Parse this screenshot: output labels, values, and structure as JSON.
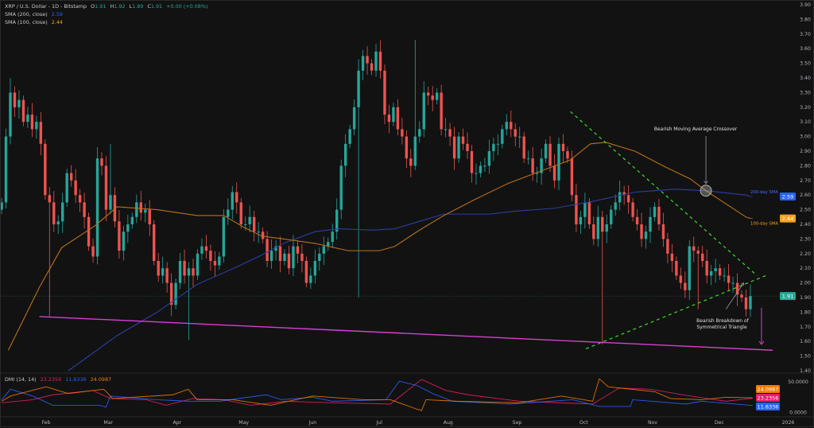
{
  "header": {
    "symbol": "XRP / U.S. Dollar - 1D - Bitstamp",
    "open_label": "O",
    "open": "1.91",
    "high_label": "H",
    "high": "1.92",
    "low_label": "L",
    "low": "1.89",
    "close_label": "C",
    "close": "1.91",
    "change": "+0.00 (+0.08%)"
  },
  "indicators": [
    {
      "label": "SMA (200, close)",
      "value": "2.59",
      "color": "#2962ff"
    },
    {
      "label": "SMA (100, close)",
      "value": "2.44",
      "color": "#f7a21b"
    }
  ],
  "dmi_legend": {
    "label": "DMI (14, 14)",
    "values": [
      "23.2356",
      "11.6336",
      "24.0987"
    ]
  },
  "colors": {
    "up": "#26a69a",
    "down": "#ef5350",
    "sma200": "#2b3fa0",
    "sma100": "#b8711c",
    "support": "#d63fd6",
    "triangle": "#3ddc2f",
    "price_badge": "#22ab94",
    "dmi_plus": "#e91e63",
    "dmi_minus": "#2962ff",
    "adx": "#f57c00"
  },
  "chart_data": [
    {
      "type": "candlestick",
      "title": "XRP / U.S. Dollar - 1D - Bitstamp",
      "date_range": [
        "2025-01-12",
        "2025-12-15"
      ],
      "close": [
        2.55,
        3.0,
        3.3,
        3.2,
        3.25,
        3.1,
        3.15,
        3.05,
        3.1,
        2.95,
        2.6,
        2.55,
        2.4,
        2.42,
        2.55,
        2.75,
        2.7,
        2.6,
        2.55,
        2.45,
        2.25,
        2.18,
        2.85,
        2.8,
        2.5,
        2.6,
        2.42,
        2.22,
        2.35,
        2.4,
        2.45,
        2.55,
        2.48,
        2.5,
        2.4,
        2.15,
        2.05,
        2.1,
        2.0,
        1.85,
        2.0,
        2.15,
        2.05,
        2.1,
        2.05,
        2.2,
        2.25,
        2.22,
        2.15,
        2.12,
        2.18,
        2.45,
        2.5,
        2.62,
        2.55,
        2.4,
        2.4,
        2.45,
        2.35,
        2.35,
        2.3,
        2.15,
        2.22,
        2.25,
        2.15,
        2.2,
        2.1,
        2.25,
        2.2,
        2.15,
        2.0,
        2.05,
        2.15,
        2.2,
        2.25,
        2.28,
        2.35,
        2.5,
        2.8,
        2.95,
        3.05,
        3.2,
        3.45,
        3.55,
        3.5,
        3.45,
        3.58,
        3.45,
        3.15,
        3.1,
        3.2,
        3.05,
        3.0,
        2.85,
        2.8,
        3.0,
        3.05,
        3.3,
        3.28,
        3.25,
        3.3,
        3.05,
        3.05,
        3.0,
        2.85,
        3.0,
        2.95,
        2.9,
        2.75,
        2.75,
        2.8,
        2.8,
        2.9,
        2.95,
        2.95,
        3.05,
        3.1,
        3.05,
        3.0,
        3.0,
        2.85,
        2.85,
        2.75,
        2.75,
        2.85,
        2.95,
        2.8,
        2.7,
        2.95,
        2.9,
        2.85,
        2.6,
        2.4,
        2.45,
        2.55,
        2.4,
        2.3,
        2.45,
        2.35,
        2.4,
        2.5,
        2.55,
        2.62,
        2.6,
        2.55,
        2.45,
        2.4,
        2.3,
        2.35,
        2.45,
        2.52,
        2.4,
        2.3,
        2.2,
        2.15,
        2.05,
        2.0,
        1.95,
        2.25,
        2.22,
        2.2,
        2.15,
        2.05,
        2.08,
        2.1,
        2.05,
        2.05,
        2.0,
        2.0,
        1.92,
        1.9,
        1.82,
        1.91
      ],
      "wick_extremes": [
        {
          "date": "2025-01-16",
          "high": 3.4
        },
        {
          "date": "2025-02-03",
          "low": 1.77
        },
        {
          "date": "2025-03-02",
          "high": 2.95
        },
        {
          "date": "2025-04-07",
          "low": 1.61
        },
        {
          "date": "2025-06-22",
          "low": 1.9
        },
        {
          "date": "2025-07-18",
          "high": 3.66
        },
        {
          "date": "2025-10-10",
          "low": 1.58
        },
        {
          "date": "2025-11-21",
          "low": 1.82
        },
        {
          "date": "2025-12-14",
          "low": 1.77
        }
      ],
      "y_ticks": [
        "3.90",
        "3.80",
        "3.70",
        "3.60",
        "3.50",
        "3.40",
        "3.30",
        "3.20",
        "3.10",
        "3.00",
        "2.90",
        "2.80",
        "2.70",
        "2.60",
        "2.50",
        "2.40",
        "2.30",
        "2.20",
        "2.10",
        "2.00",
        "1.90",
        "1.80",
        "1.70",
        "1.60",
        "1.50",
        "1.40"
      ],
      "ylim": [
        1.4,
        3.9
      ],
      "x_ticks": [
        {
          "label": "Feb",
          "date": "2025-02-01"
        },
        {
          "label": "Mar",
          "date": "2025-03-01"
        },
        {
          "label": "Apr",
          "date": "2025-04-01"
        },
        {
          "label": "May",
          "date": "2025-05-01"
        },
        {
          "label": "Jun",
          "date": "2025-06-01"
        },
        {
          "label": "Jul",
          "date": "2025-07-01"
        },
        {
          "label": "Aug",
          "date": "2025-08-01"
        },
        {
          "label": "Sep",
          "date": "2025-09-01"
        },
        {
          "label": "Oct",
          "date": "2025-10-01"
        },
        {
          "label": "Nov",
          "date": "2025-11-01"
        },
        {
          "label": "Dec",
          "date": "2025-12-01"
        },
        {
          "label": "2026",
          "date": "2026-01-01"
        }
      ],
      "last_price": {
        "value": 1.91,
        "label": "1.91"
      },
      "series": [
        {
          "name": "SMA (200, close)",
          "line_label": "200-day SMA",
          "last_label": "2.59",
          "points": [
            [
              "2025-02-11",
              1.4
            ],
            [
              "2025-03-05",
              1.64
            ],
            [
              "2025-03-23",
              1.8
            ],
            [
              "2025-04-10",
              1.99
            ],
            [
              "2025-04-28",
              2.11
            ],
            [
              "2025-05-09",
              2.19
            ],
            [
              "2025-05-19",
              2.27
            ],
            [
              "2025-06-02",
              2.35
            ],
            [
              "2025-06-13",
              2.37
            ],
            [
              "2025-06-28",
              2.36
            ],
            [
              "2025-07-08",
              2.37
            ],
            [
              "2025-07-19",
              2.42
            ],
            [
              "2025-07-30",
              2.47
            ],
            [
              "2025-08-20",
              2.47
            ],
            [
              "2025-08-31",
              2.49
            ],
            [
              "2025-09-18",
              2.51
            ],
            [
              "2025-10-06",
              2.56
            ],
            [
              "2025-10-24",
              2.62
            ],
            [
              "2025-11-11",
              2.64
            ],
            [
              "2025-11-25",
              2.63
            ],
            [
              "2025-12-13",
              2.6
            ],
            [
              "2025-12-15",
              2.59
            ]
          ]
        },
        {
          "name": "SMA (100, close)",
          "line_label": "100-day SMA",
          "last_label": "2.44",
          "points": [
            [
              "2025-01-15",
              1.54
            ],
            [
              "2025-01-29",
              1.97
            ],
            [
              "2025-02-08",
              2.24
            ],
            [
              "2025-02-23",
              2.39
            ],
            [
              "2025-03-05",
              2.52
            ],
            [
              "2025-03-23",
              2.5
            ],
            [
              "2025-04-10",
              2.46
            ],
            [
              "2025-04-22",
              2.46
            ],
            [
              "2025-05-01",
              2.38
            ],
            [
              "2025-05-09",
              2.32
            ],
            [
              "2025-05-19",
              2.3
            ],
            [
              "2025-06-02",
              2.27
            ],
            [
              "2025-06-17",
              2.22
            ],
            [
              "2025-07-01",
              2.22
            ],
            [
              "2025-07-08",
              2.25
            ],
            [
              "2025-07-19",
              2.36
            ],
            [
              "2025-07-30",
              2.46
            ],
            [
              "2025-08-13",
              2.57
            ],
            [
              "2025-08-28",
              2.68
            ],
            [
              "2025-09-11",
              2.76
            ],
            [
              "2025-09-25",
              2.84
            ],
            [
              "2025-10-04",
              2.95
            ],
            [
              "2025-10-11",
              2.96
            ],
            [
              "2025-10-24",
              2.9
            ],
            [
              "2025-11-07",
              2.79
            ],
            [
              "2025-11-18",
              2.71
            ],
            [
              "2025-11-25",
              2.63
            ],
            [
              "2025-12-02",
              2.56
            ],
            [
              "2025-12-13",
              2.45
            ],
            [
              "2025-12-15",
              2.44
            ]
          ]
        }
      ],
      "drawings": {
        "support_line": [
          [
            "2025-01-29",
            1.77
          ],
          [
            "2025-12-25",
            1.54
          ]
        ],
        "triangle_upper": [
          [
            "2025-09-25",
            3.17
          ],
          [
            "2025-12-18",
            2.05
          ]
        ],
        "triangle_lower": [
          [
            "2025-10-02",
            1.55
          ],
          [
            "2025-12-22",
            2.05
          ]
        ],
        "target_arrow": [
          [
            "2025-12-20",
            1.83
          ],
          [
            "2025-12-20",
            1.58
          ]
        ],
        "crossover": {
          "date": "2025-11-25",
          "price": 2.63,
          "text": "Bearish Moving Average Crossover"
        },
        "breakdown": {
          "text_line1": "Bearish Breakdown of",
          "text_line2": "Symmetrical Triangle",
          "arrow": [
            [
              "2025-12-04",
              1.82
            ],
            [
              "2025-12-12",
              2.0
            ]
          ]
        }
      }
    },
    {
      "type": "line",
      "title": "DMI (14, 14)",
      "ylim": [
        0,
        50
      ],
      "y_ticks": [
        "50.0000",
        "0.0000"
      ],
      "series": [
        {
          "value_label": "23.2356",
          "points": [
            [
              "2025-01-12",
              16
            ],
            [
              "2025-01-26",
              21
            ],
            [
              "2025-02-04",
              29
            ],
            [
              "2025-02-22",
              36
            ],
            [
              "2025-03-02",
              23
            ],
            [
              "2025-03-18",
              21
            ],
            [
              "2025-03-27",
              12
            ],
            [
              "2025-04-08",
              23
            ],
            [
              "2025-04-22",
              21
            ],
            [
              "2025-05-04",
              12
            ],
            [
              "2025-05-20",
              18.5
            ],
            [
              "2025-06-10",
              16
            ],
            [
              "2025-07-06",
              14
            ],
            [
              "2025-07-20",
              54
            ],
            [
              "2025-07-31",
              36
            ],
            [
              "2025-08-10",
              29
            ],
            [
              "2025-09-02",
              18.5
            ],
            [
              "2025-10-05",
              14
            ],
            [
              "2025-10-17",
              40
            ],
            [
              "2025-10-31",
              38
            ],
            [
              "2025-11-18",
              27
            ],
            [
              "2025-12-04",
              18.5
            ],
            [
              "2025-12-16",
              23.2356
            ]
          ]
        },
        {
          "value_label": "11.6336",
          "points": [
            [
              "2025-01-12",
              20.7
            ],
            [
              "2025-01-16",
              38
            ],
            [
              "2025-01-26",
              27
            ],
            [
              "2025-02-04",
              12
            ],
            [
              "2025-02-25",
              12
            ],
            [
              "2025-02-28",
              9
            ],
            [
              "2025-03-02",
              27
            ],
            [
              "2025-03-23",
              21
            ],
            [
              "2025-04-06",
              18.5
            ],
            [
              "2025-04-20",
              18.5
            ],
            [
              "2025-05-11",
              29
            ],
            [
              "2025-05-18",
              21
            ],
            [
              "2025-06-01",
              25
            ],
            [
              "2025-06-10",
              18.5
            ],
            [
              "2025-07-04",
              21
            ],
            [
              "2025-07-10",
              51
            ],
            [
              "2025-07-18",
              44
            ],
            [
              "2025-07-25",
              31
            ],
            [
              "2025-08-03",
              18.5
            ],
            [
              "2025-08-29",
              14
            ],
            [
              "2025-09-26",
              21
            ],
            [
              "2025-10-08",
              10
            ],
            [
              "2025-10-22",
              10
            ],
            [
              "2025-10-23",
              21
            ],
            [
              "2025-11-16",
              14
            ],
            [
              "2025-11-23",
              18.5
            ],
            [
              "2025-12-16",
              11.6336
            ]
          ]
        },
        {
          "value_label": "24.0987",
          "points": [
            [
              "2025-01-12",
              18.5
            ],
            [
              "2025-01-16",
              27
            ],
            [
              "2025-02-01",
              42
            ],
            [
              "2025-02-11",
              31
            ],
            [
              "2025-02-27",
              38
            ],
            [
              "2025-03-03",
              23
            ],
            [
              "2025-03-30",
              29
            ],
            [
              "2025-04-06",
              38
            ],
            [
              "2025-04-10",
              21
            ],
            [
              "2025-04-26",
              21
            ],
            [
              "2025-05-13",
              12
            ],
            [
              "2025-06-01",
              27
            ],
            [
              "2025-06-24",
              21
            ],
            [
              "2025-07-06",
              21
            ],
            [
              "2025-07-18",
              5.6
            ],
            [
              "2025-07-20",
              3.4
            ],
            [
              "2025-07-22",
              21
            ],
            [
              "2025-08-05",
              18.5
            ],
            [
              "2025-09-02",
              16
            ],
            [
              "2025-09-21",
              27
            ],
            [
              "2025-10-05",
              18.5
            ],
            [
              "2025-10-08",
              55
            ],
            [
              "2025-10-12",
              42
            ],
            [
              "2025-11-02",
              34
            ],
            [
              "2025-11-09",
              23
            ],
            [
              "2025-11-23",
              21
            ],
            [
              "2025-12-04",
              25
            ],
            [
              "2025-12-16",
              24.0987
            ]
          ]
        }
      ]
    }
  ]
}
